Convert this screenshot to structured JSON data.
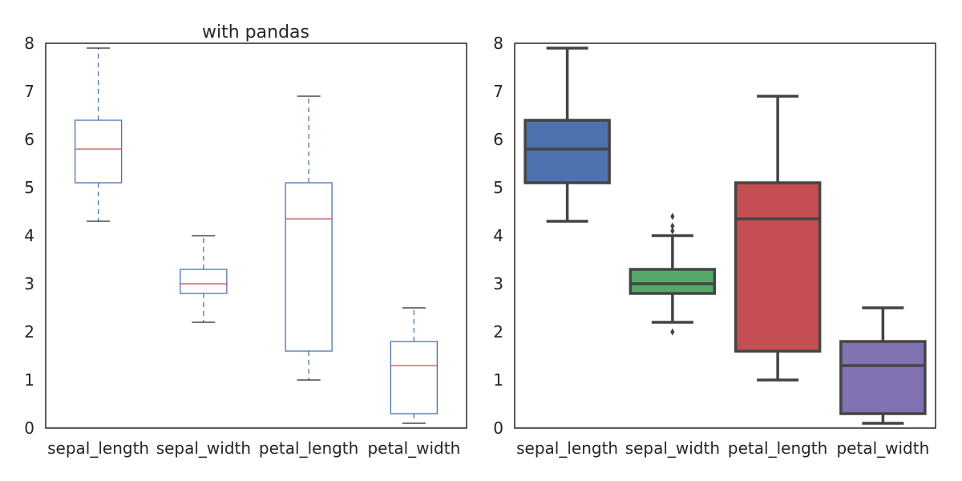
{
  "chart_data": [
    {
      "type": "boxplot",
      "style": "pandas",
      "title": "with pandas",
      "xlabel": "",
      "ylabel": "",
      "ylim": [
        0,
        8
      ],
      "yticks": [
        "0",
        "1",
        "2",
        "3",
        "4",
        "5",
        "6",
        "7",
        "8"
      ],
      "categories": [
        "sepal_length",
        "sepal_width",
        "petal_length",
        "petal_width"
      ],
      "boxes": [
        {
          "whisker_low": 4.3,
          "q1": 5.1,
          "median": 5.8,
          "q3": 6.4,
          "whisker_high": 7.9,
          "outliers": []
        },
        {
          "whisker_low": 2.2,
          "q1": 2.8,
          "median": 3.0,
          "q3": 3.3,
          "whisker_high": 4.0,
          "outliers": []
        },
        {
          "whisker_low": 1.0,
          "q1": 1.6,
          "median": 4.35,
          "q3": 5.1,
          "whisker_high": 6.9,
          "outliers": []
        },
        {
          "whisker_low": 0.1,
          "q1": 0.3,
          "median": 1.3,
          "q3": 1.8,
          "whisker_high": 2.5,
          "outliers": []
        }
      ],
      "colors": {
        "box": "#4c72b0",
        "median": "#c44e52",
        "cap": "#262626"
      }
    },
    {
      "type": "boxplot",
      "style": "seaborn",
      "title": "",
      "xlabel": "",
      "ylabel": "",
      "ylim": [
        0,
        8
      ],
      "yticks": [
        "0",
        "1",
        "2",
        "3",
        "4",
        "5",
        "6",
        "7",
        "8"
      ],
      "categories": [
        "sepal_length",
        "sepal_width",
        "petal_length",
        "petal_width"
      ],
      "boxes": [
        {
          "whisker_low": 4.3,
          "q1": 5.1,
          "median": 5.8,
          "q3": 6.4,
          "whisker_high": 7.9,
          "outliers": []
        },
        {
          "whisker_low": 2.2,
          "q1": 2.8,
          "median": 3.0,
          "q3": 3.3,
          "whisker_high": 4.0,
          "outliers": [
            2.0,
            4.1,
            4.2,
            4.4
          ]
        },
        {
          "whisker_low": 1.0,
          "q1": 1.6,
          "median": 4.35,
          "q3": 5.1,
          "whisker_high": 6.9,
          "outliers": []
        },
        {
          "whisker_low": 0.1,
          "q1": 0.3,
          "median": 1.3,
          "q3": 1.8,
          "whisker_high": 2.5,
          "outliers": []
        }
      ],
      "colors": {
        "fills": [
          "#4c72b0",
          "#55a868",
          "#c44e52",
          "#8172b2"
        ],
        "line": "#444444"
      }
    }
  ]
}
